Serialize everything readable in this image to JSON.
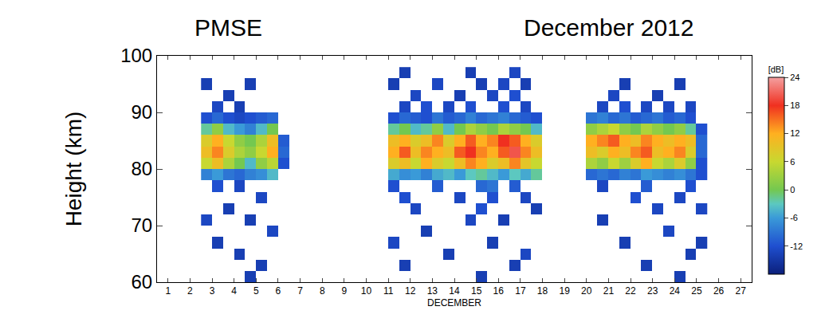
{
  "chart_data": {
    "type": "heatmap",
    "title": "PMSE",
    "subtitle": "December 2012",
    "x_label": "DECEMBER",
    "y_label": "Height (km)",
    "xlim": [
      0.5,
      27.5
    ],
    "xticks": [
      1,
      2,
      3,
      4,
      5,
      6,
      7,
      8,
      9,
      10,
      11,
      12,
      13,
      14,
      15,
      16,
      17,
      18,
      19,
      20,
      21,
      22,
      23,
      24,
      25,
      26,
      27
    ],
    "ylim": [
      60,
      100
    ],
    "yticks": [
      60,
      70,
      80,
      90,
      100
    ],
    "grid": false,
    "x": [
      2.75,
      3.25,
      3.75,
      4.25,
      4.75,
      5.25,
      5.75,
      6.25,
      6.75,
      7.25,
      7.75,
      8.25,
      8.75,
      9.25,
      9.75,
      10.25,
      10.75,
      11.25,
      11.75,
      12.25,
      12.75,
      13.25,
      13.75,
      14.25,
      14.75,
      15.25,
      15.75,
      16.25,
      16.75,
      17.25,
      17.75,
      18.25,
      18.75,
      19.25,
      19.75,
      20.25,
      20.75,
      21.25,
      21.75,
      22.25,
      22.75,
      23.25,
      23.75,
      24.25,
      24.75,
      25.25
    ],
    "y": [
      61,
      63,
      65,
      67,
      69,
      71,
      73,
      75,
      77,
      79,
      81,
      83,
      85,
      87,
      89,
      91,
      93,
      95,
      97
    ],
    "z": [
      [
        null,
        null,
        null,
        null,
        -14,
        null,
        null,
        null,
        null,
        null,
        null,
        null,
        null,
        null,
        null,
        null,
        null,
        null,
        null,
        null,
        null,
        null,
        null,
        null,
        null,
        -14,
        null,
        null,
        null,
        null,
        null,
        null,
        null,
        null,
        null,
        null,
        null,
        null,
        null,
        null,
        null,
        null,
        null,
        -14,
        null,
        null
      ],
      [
        null,
        null,
        null,
        null,
        null,
        -14,
        null,
        null,
        null,
        null,
        null,
        null,
        null,
        null,
        null,
        null,
        null,
        null,
        -14,
        null,
        null,
        null,
        null,
        null,
        null,
        null,
        null,
        null,
        -14,
        null,
        null,
        null,
        null,
        null,
        null,
        null,
        null,
        null,
        null,
        null,
        -14,
        null,
        null,
        null,
        null,
        null
      ],
      [
        null,
        null,
        null,
        -14,
        null,
        null,
        null,
        null,
        null,
        null,
        null,
        null,
        null,
        null,
        null,
        null,
        null,
        null,
        null,
        null,
        null,
        null,
        -14,
        null,
        null,
        null,
        null,
        null,
        null,
        -13,
        null,
        null,
        null,
        null,
        null,
        null,
        null,
        null,
        null,
        null,
        null,
        null,
        null,
        null,
        -14,
        null
      ],
      [
        null,
        -14,
        null,
        null,
        null,
        null,
        null,
        null,
        null,
        null,
        null,
        null,
        null,
        null,
        null,
        null,
        null,
        -13,
        null,
        null,
        null,
        null,
        null,
        null,
        null,
        null,
        -14,
        null,
        null,
        null,
        null,
        null,
        null,
        null,
        null,
        null,
        null,
        null,
        -14,
        null,
        null,
        null,
        null,
        null,
        null,
        -14
      ],
      [
        null,
        null,
        null,
        null,
        null,
        null,
        -13,
        null,
        null,
        null,
        null,
        null,
        null,
        null,
        null,
        null,
        null,
        null,
        null,
        null,
        -14,
        null,
        null,
        null,
        null,
        null,
        null,
        null,
        null,
        null,
        null,
        null,
        null,
        null,
        null,
        null,
        null,
        null,
        null,
        null,
        null,
        null,
        -13,
        null,
        null,
        null
      ],
      [
        -13,
        null,
        null,
        null,
        -14,
        null,
        null,
        null,
        null,
        null,
        null,
        null,
        null,
        null,
        null,
        null,
        null,
        null,
        null,
        null,
        null,
        null,
        null,
        null,
        -13,
        null,
        null,
        -14,
        null,
        null,
        null,
        null,
        null,
        null,
        null,
        null,
        -14,
        null,
        null,
        null,
        null,
        null,
        null,
        null,
        null,
        null
      ],
      [
        null,
        null,
        -14,
        null,
        null,
        null,
        null,
        null,
        null,
        null,
        null,
        null,
        null,
        null,
        null,
        null,
        null,
        null,
        null,
        -13,
        null,
        null,
        null,
        null,
        null,
        -12,
        null,
        null,
        null,
        null,
        -14,
        null,
        null,
        null,
        null,
        null,
        null,
        null,
        null,
        null,
        null,
        -13,
        null,
        null,
        null,
        -13
      ],
      [
        null,
        null,
        null,
        null,
        null,
        -13,
        null,
        null,
        null,
        null,
        null,
        null,
        null,
        null,
        null,
        null,
        null,
        null,
        -12,
        null,
        null,
        null,
        null,
        -13,
        null,
        null,
        -12,
        null,
        null,
        -13,
        null,
        null,
        null,
        null,
        null,
        null,
        null,
        null,
        null,
        -12,
        null,
        null,
        null,
        -13,
        null,
        null
      ],
      [
        null,
        -12,
        null,
        -13,
        null,
        null,
        null,
        null,
        null,
        null,
        null,
        null,
        null,
        null,
        null,
        null,
        null,
        -12,
        null,
        null,
        null,
        -11,
        null,
        null,
        null,
        -10,
        -9,
        null,
        -11,
        null,
        null,
        null,
        null,
        null,
        null,
        null,
        -13,
        null,
        null,
        null,
        -11,
        null,
        null,
        null,
        -12,
        null
      ],
      [
        -8,
        -6,
        -9,
        -10,
        -8,
        -7,
        -4,
        null,
        null,
        null,
        null,
        null,
        null,
        null,
        null,
        null,
        null,
        -5,
        -7,
        -6,
        -8,
        -5,
        -4,
        -6,
        -3,
        -2,
        -4,
        -6,
        -3,
        -5,
        -2,
        null,
        null,
        null,
        null,
        -10,
        -9,
        -10,
        -8,
        -9,
        -6,
        -7,
        -8,
        -7,
        -9,
        -12
      ],
      [
        6,
        10,
        4,
        0,
        -4,
        2,
        5,
        -12,
        null,
        null,
        null,
        null,
        null,
        null,
        null,
        null,
        null,
        8,
        10,
        6,
        12,
        8,
        6,
        10,
        14,
        12,
        8,
        10,
        14,
        9,
        6,
        null,
        null,
        null,
        null,
        4,
        2,
        6,
        3,
        8,
        12,
        6,
        4,
        8,
        2,
        -12
      ],
      [
        10,
        14,
        8,
        4,
        2,
        6,
        12,
        -10,
        null,
        null,
        null,
        null,
        null,
        null,
        null,
        null,
        null,
        12,
        16,
        10,
        14,
        12,
        10,
        16,
        18,
        14,
        12,
        16,
        20,
        14,
        10,
        null,
        null,
        null,
        null,
        10,
        8,
        12,
        10,
        14,
        16,
        10,
        12,
        14,
        8,
        -10
      ],
      [
        8,
        12,
        6,
        2,
        0,
        4,
        10,
        -11,
        null,
        null,
        null,
        null,
        null,
        null,
        null,
        null,
        null,
        10,
        12,
        8,
        10,
        14,
        8,
        12,
        16,
        12,
        14,
        18,
        16,
        12,
        8,
        null,
        null,
        null,
        null,
        12,
        14,
        16,
        12,
        10,
        14,
        12,
        10,
        12,
        10,
        -10
      ],
      [
        -2,
        2,
        -4,
        -6,
        -8,
        -4,
        0,
        null,
        null,
        null,
        null,
        null,
        null,
        null,
        null,
        null,
        null,
        -2,
        0,
        -4,
        -2,
        2,
        -4,
        0,
        4,
        2,
        0,
        4,
        2,
        0,
        -4,
        null,
        null,
        null,
        null,
        2,
        4,
        6,
        2,
        0,
        4,
        2,
        0,
        2,
        -2,
        -12
      ],
      [
        -12,
        -10,
        -12,
        -13,
        -12,
        -11,
        -10,
        null,
        null,
        null,
        null,
        null,
        null,
        null,
        null,
        null,
        null,
        -12,
        -10,
        -11,
        -12,
        -9,
        -11,
        -10,
        -8,
        -10,
        -9,
        -8,
        -10,
        -11,
        -12,
        null,
        null,
        null,
        null,
        -9,
        -8,
        -10,
        -9,
        -11,
        -10,
        -9,
        -11,
        -10,
        -12,
        null
      ],
      [
        null,
        -13,
        null,
        -14,
        null,
        null,
        null,
        null,
        null,
        null,
        null,
        null,
        null,
        null,
        null,
        null,
        null,
        null,
        -13,
        null,
        -12,
        null,
        -13,
        null,
        -12,
        null,
        null,
        -12,
        null,
        -13,
        null,
        null,
        null,
        null,
        null,
        null,
        -13,
        null,
        -12,
        null,
        -13,
        null,
        -13,
        null,
        -13,
        null
      ],
      [
        null,
        null,
        -14,
        null,
        null,
        null,
        null,
        null,
        null,
        null,
        null,
        null,
        null,
        null,
        null,
        null,
        null,
        null,
        null,
        -13,
        null,
        null,
        null,
        -14,
        null,
        null,
        -13,
        null,
        -12,
        null,
        null,
        null,
        null,
        null,
        null,
        null,
        null,
        -13,
        null,
        null,
        null,
        -14,
        null,
        null,
        null,
        null
      ],
      [
        -14,
        null,
        null,
        null,
        -14,
        null,
        null,
        null,
        null,
        null,
        null,
        null,
        null,
        null,
        null,
        null,
        null,
        -14,
        null,
        null,
        null,
        -13,
        null,
        null,
        null,
        -14,
        null,
        -13,
        null,
        -14,
        null,
        null,
        null,
        null,
        null,
        null,
        null,
        null,
        -14,
        null,
        null,
        null,
        null,
        -14,
        null,
        null
      ],
      [
        null,
        null,
        null,
        null,
        null,
        null,
        null,
        null,
        null,
        null,
        null,
        null,
        null,
        null,
        null,
        null,
        null,
        null,
        -14,
        null,
        null,
        null,
        null,
        null,
        -14,
        null,
        null,
        null,
        -13,
        null,
        null,
        null,
        null,
        null,
        null,
        null,
        null,
        null,
        null,
        null,
        null,
        null,
        null,
        null,
        null,
        null
      ]
    ],
    "colorbar": {
      "title": "[dB]",
      "range": [
        -18,
        24
      ],
      "ticks": [
        -12,
        -6,
        0,
        6,
        12,
        18,
        24
      ]
    }
  }
}
